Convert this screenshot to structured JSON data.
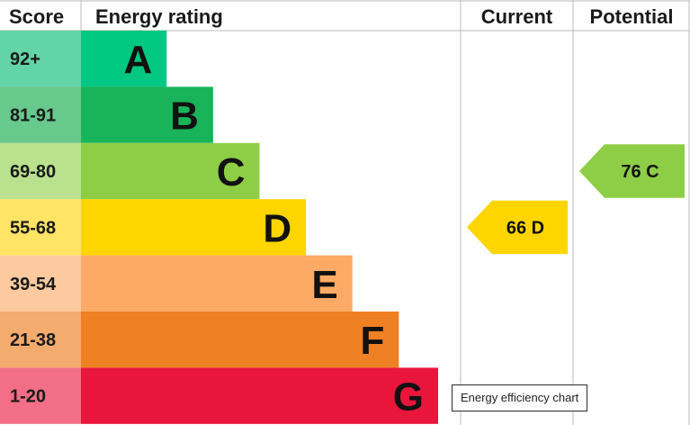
{
  "chart_data": {
    "type": "bar",
    "headers": {
      "score": "Score",
      "rating": "Energy rating",
      "current": "Current",
      "potential": "Potential"
    },
    "bands": [
      {
        "score": "92+",
        "letter": "A",
        "color": "#00c781",
        "label_color": "#63d4a8",
        "relative_length": 0.24
      },
      {
        "score": "81-91",
        "letter": "B",
        "color": "#19b459",
        "label_color": "#68c98d",
        "relative_length": 0.37
      },
      {
        "score": "69-80",
        "letter": "C",
        "color": "#8dce46",
        "label_color": "#b9e18e",
        "relative_length": 0.5
      },
      {
        "score": "55-68",
        "letter": "D",
        "color": "#ffd500",
        "label_color": "#ffe466",
        "relative_length": 0.63
      },
      {
        "score": "39-54",
        "letter": "E",
        "color": "#fcaa65",
        "label_color": "#fdcaa0",
        "relative_length": 0.76
      },
      {
        "score": "21-38",
        "letter": "F",
        "color": "#ef8023",
        "label_color": "#f4ab6e",
        "relative_length": 0.89
      },
      {
        "score": "1-20",
        "letter": "G",
        "color": "#e9153b",
        "label_color": "#f26f87",
        "relative_length": 1.0
      }
    ],
    "current": {
      "value": 66,
      "band": "D",
      "label": "66  D",
      "color": "#ffd500"
    },
    "potential": {
      "value": 76,
      "band": "C",
      "label": "76  C",
      "color": "#8dce46"
    },
    "grid": true
  },
  "tooltip": {
    "text": "Energy efficiency chart"
  }
}
